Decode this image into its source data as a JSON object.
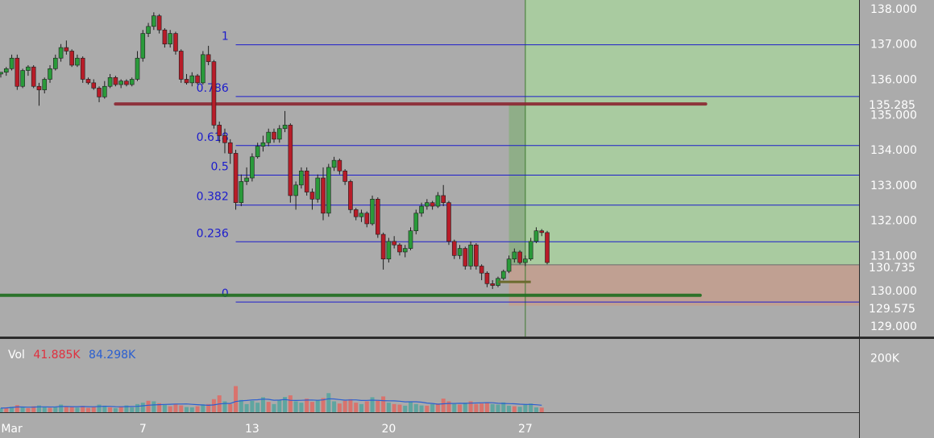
{
  "chart_data": {
    "type": "candlestick",
    "x_axis": {
      "ticks": [
        {
          "label": "Mar",
          "idx": 2
        },
        {
          "label": "7",
          "idx": 26
        },
        {
          "label": "13",
          "idx": 46
        },
        {
          "label": "20",
          "idx": 71
        },
        {
          "label": "27",
          "idx": 96
        }
      ]
    },
    "y_axis": {
      "range": [
        128.7,
        138.25
      ],
      "ticks": [
        {
          "label": "129.000",
          "v": 129
        },
        {
          "label": "130.000",
          "v": 130
        },
        {
          "label": "131.000",
          "v": 131
        },
        {
          "label": "132.000",
          "v": 132
        },
        {
          "label": "133.000",
          "v": 133
        },
        {
          "label": "134.000",
          "v": 134
        },
        {
          "label": "135.000",
          "v": 135
        },
        {
          "label": "136.000",
          "v": 136
        },
        {
          "label": "137.000",
          "v": 137
        },
        {
          "label": "138.000",
          "v": 138
        }
      ]
    },
    "volume_axis": {
      "tick_label": "200K",
      "tick_value": 200000,
      "max": 260000
    },
    "fibonacci": [
      {
        "label": "1",
        "v": 136.98
      },
      {
        "label": "0.786",
        "v": 135.51
      },
      {
        "label": "0.618",
        "v": 134.12
      },
      {
        "label": "0.5",
        "v": 133.28
      },
      {
        "label": "0.382",
        "v": 132.43
      },
      {
        "label": "0.236",
        "v": 131.39
      },
      {
        "label": "0",
        "v": 129.68
      }
    ],
    "horizontal_levels": [
      {
        "name": "resistance",
        "v": 135.3,
        "color": "#8b2530"
      },
      {
        "name": "support",
        "v": 129.87,
        "color": "#1e6e1e"
      }
    ],
    "position": {
      "entry": 130.735,
      "target": 135.285,
      "stop": 129.575
    },
    "price_labels": [
      {
        "text": "135.285",
        "v": 135.285,
        "color": "#27913a"
      },
      {
        "text": "130.735",
        "v": 130.735,
        "color": "#4a4a4a"
      },
      {
        "text": "129.575",
        "v": 129.575,
        "color": "#e0303f"
      }
    ],
    "volume_legend": {
      "title": "Vol",
      "value1": "41.885K",
      "value2": "84.298K"
    },
    "colors": {
      "up": "#2a9a3a",
      "down": "#b81c28",
      "vol_up": "#5fa5a0",
      "vol_down": "#d9736d",
      "fib": "#1c1ccc",
      "vol_ma": "#2b5fd0"
    },
    "candles": [
      [
        136.15,
        136.2,
        136.05,
        136.2
      ],
      [
        136.2,
        136.35,
        136.1,
        136.3
      ],
      [
        136.3,
        136.7,
        136.25,
        136.6
      ],
      [
        136.6,
        136.7,
        135.7,
        135.8
      ],
      [
        135.8,
        136.3,
        135.75,
        136.25
      ],
      [
        136.25,
        136.4,
        136.1,
        136.35
      ],
      [
        136.35,
        136.4,
        135.75,
        135.8
      ],
      [
        135.8,
        135.9,
        135.25,
        135.7
      ],
      [
        135.7,
        136.05,
        135.6,
        136.0
      ],
      [
        136.0,
        136.4,
        135.9,
        136.3
      ],
      [
        136.3,
        136.7,
        136.25,
        136.6
      ],
      [
        136.6,
        137.0,
        136.5,
        136.9
      ],
      [
        136.9,
        137.1,
        136.7,
        136.8
      ],
      [
        136.8,
        136.85,
        136.35,
        136.4
      ],
      [
        136.4,
        136.7,
        136.35,
        136.6
      ],
      [
        136.6,
        136.65,
        135.9,
        136.0
      ],
      [
        136.0,
        136.05,
        135.85,
        135.9
      ],
      [
        135.9,
        136.0,
        135.7,
        135.75
      ],
      [
        135.75,
        135.8,
        135.35,
        135.5
      ],
      [
        135.5,
        135.95,
        135.45,
        135.8
      ],
      [
        135.8,
        136.15,
        135.75,
        136.05
      ],
      [
        136.05,
        136.1,
        135.8,
        135.85
      ],
      [
        135.85,
        136.0,
        135.75,
        135.95
      ],
      [
        135.95,
        136.0,
        135.8,
        135.85
      ],
      [
        135.85,
        136.05,
        135.8,
        136.0
      ],
      [
        136.0,
        136.8,
        135.95,
        136.6
      ],
      [
        136.6,
        137.4,
        136.5,
        137.3
      ],
      [
        137.3,
        137.6,
        137.2,
        137.5
      ],
      [
        137.5,
        137.9,
        137.4,
        137.8
      ],
      [
        137.8,
        137.85,
        137.3,
        137.4
      ],
      [
        137.4,
        137.45,
        136.9,
        137.0
      ],
      [
        137.0,
        137.4,
        136.9,
        137.3
      ],
      [
        137.3,
        137.35,
        136.7,
        136.8
      ],
      [
        136.8,
        136.85,
        135.9,
        136.0
      ],
      [
        136.0,
        136.15,
        135.85,
        135.9
      ],
      [
        135.9,
        136.2,
        135.8,
        136.1
      ],
      [
        136.1,
        136.15,
        135.85,
        135.9
      ],
      [
        135.9,
        136.8,
        135.85,
        136.7
      ],
      [
        136.7,
        136.95,
        136.4,
        136.5
      ],
      [
        136.5,
        136.55,
        134.6,
        134.7
      ],
      [
        134.7,
        134.8,
        134.2,
        134.4
      ],
      [
        134.4,
        134.6,
        133.9,
        134.2
      ],
      [
        134.2,
        134.3,
        133.6,
        133.9
      ],
      [
        133.9,
        134.0,
        132.3,
        132.5
      ],
      [
        132.5,
        133.3,
        132.4,
        133.1
      ],
      [
        133.1,
        133.5,
        133.0,
        133.2
      ],
      [
        133.2,
        133.9,
        133.1,
        133.8
      ],
      [
        133.8,
        134.2,
        133.75,
        134.1
      ],
      [
        134.1,
        134.4,
        133.95,
        134.2
      ],
      [
        134.2,
        134.6,
        134.1,
        134.5
      ],
      [
        134.5,
        134.6,
        134.2,
        134.3
      ],
      [
        134.3,
        134.7,
        134.2,
        134.6
      ],
      [
        134.6,
        135.1,
        134.5,
        134.7
      ],
      [
        134.7,
        134.75,
        132.5,
        132.7
      ],
      [
        132.7,
        133.1,
        132.3,
        133.0
      ],
      [
        133.0,
        133.5,
        132.9,
        133.4
      ],
      [
        133.4,
        133.5,
        132.7,
        132.8
      ],
      [
        132.8,
        132.9,
        132.3,
        132.6
      ],
      [
        132.6,
        133.3,
        132.5,
        133.2
      ],
      [
        133.2,
        133.5,
        132.0,
        132.2
      ],
      [
        132.2,
        133.6,
        132.1,
        133.5
      ],
      [
        133.5,
        133.8,
        133.4,
        133.7
      ],
      [
        133.7,
        133.75,
        133.3,
        133.4
      ],
      [
        133.4,
        133.45,
        133.0,
        133.1
      ],
      [
        133.1,
        133.15,
        132.2,
        132.3
      ],
      [
        132.3,
        132.35,
        132.0,
        132.1
      ],
      [
        132.1,
        132.3,
        131.95,
        132.2
      ],
      [
        132.2,
        132.25,
        131.8,
        131.9
      ],
      [
        131.9,
        132.7,
        131.85,
        132.6
      ],
      [
        132.6,
        132.65,
        131.5,
        131.6
      ],
      [
        131.6,
        131.65,
        130.6,
        130.9
      ],
      [
        130.9,
        131.5,
        130.8,
        131.4
      ],
      [
        131.4,
        131.55,
        131.2,
        131.3
      ],
      [
        131.3,
        131.35,
        131.0,
        131.1
      ],
      [
        131.1,
        131.3,
        130.95,
        131.2
      ],
      [
        131.2,
        131.8,
        131.15,
        131.7
      ],
      [
        131.7,
        132.3,
        131.6,
        132.2
      ],
      [
        132.2,
        132.5,
        132.1,
        132.4
      ],
      [
        132.4,
        132.6,
        132.3,
        132.5
      ],
      [
        132.5,
        132.55,
        132.3,
        132.4
      ],
      [
        132.4,
        132.8,
        132.35,
        132.7
      ],
      [
        132.7,
        133.0,
        132.4,
        132.5
      ],
      [
        132.5,
        132.55,
        131.3,
        131.4
      ],
      [
        131.4,
        131.45,
        130.9,
        131.0
      ],
      [
        131.0,
        131.3,
        130.9,
        131.2
      ],
      [
        131.2,
        131.25,
        130.6,
        130.7
      ],
      [
        130.7,
        131.4,
        130.6,
        131.3
      ],
      [
        131.3,
        131.35,
        130.6,
        130.7
      ],
      [
        130.7,
        130.75,
        130.3,
        130.5
      ],
      [
        130.5,
        130.55,
        130.1,
        130.2
      ],
      [
        130.2,
        130.3,
        130.05,
        130.15
      ],
      [
        130.15,
        130.4,
        130.1,
        130.35
      ],
      [
        130.35,
        130.6,
        130.3,
        130.55
      ],
      [
        130.55,
        131.0,
        130.5,
        130.9
      ],
      [
        130.9,
        131.2,
        130.8,
        131.1
      ],
      [
        131.1,
        131.15,
        130.75,
        130.8
      ],
      [
        130.8,
        131.0,
        130.7,
        130.9
      ],
      [
        130.9,
        131.5,
        130.85,
        131.4
      ],
      [
        131.4,
        131.8,
        131.35,
        131.7
      ],
      [
        131.7,
        131.75,
        131.55,
        131.65
      ],
      [
        131.65,
        131.7,
        130.75,
        130.8
      ]
    ],
    "volumes": [
      [
        15000,
        1
      ],
      [
        17000,
        0
      ],
      [
        20000,
        1
      ],
      [
        26000,
        0
      ],
      [
        18000,
        1
      ],
      [
        15000,
        0
      ],
      [
        22000,
        0
      ],
      [
        25000,
        1
      ],
      [
        19000,
        1
      ],
      [
        16000,
        0
      ],
      [
        20000,
        1
      ],
      [
        28000,
        1
      ],
      [
        22000,
        0
      ],
      [
        19000,
        0
      ],
      [
        17000,
        1
      ],
      [
        23000,
        0
      ],
      [
        16000,
        0
      ],
      [
        21000,
        0
      ],
      [
        28000,
        1
      ],
      [
        24000,
        1
      ],
      [
        18000,
        0
      ],
      [
        15000,
        1
      ],
      [
        21000,
        0
      ],
      [
        25000,
        1
      ],
      [
        18000,
        1
      ],
      [
        30000,
        1
      ],
      [
        35000,
        1
      ],
      [
        42000,
        0
      ],
      [
        40000,
        1
      ],
      [
        33000,
        0
      ],
      [
        27000,
        1
      ],
      [
        22000,
        0
      ],
      [
        30000,
        0
      ],
      [
        25000,
        0
      ],
      [
        19000,
        1
      ],
      [
        18000,
        1
      ],
      [
        22000,
        0
      ],
      [
        29000,
        1
      ],
      [
        30000,
        0
      ],
      [
        48000,
        0
      ],
      [
        62000,
        0
      ],
      [
        40000,
        1
      ],
      [
        30000,
        0
      ],
      [
        96000,
        0
      ],
      [
        45000,
        1
      ],
      [
        30000,
        1
      ],
      [
        42000,
        1
      ],
      [
        35000,
        1
      ],
      [
        55000,
        1
      ],
      [
        38000,
        0
      ],
      [
        30000,
        1
      ],
      [
        44000,
        1
      ],
      [
        56000,
        1
      ],
      [
        62000,
        0
      ],
      [
        40000,
        1
      ],
      [
        35000,
        1
      ],
      [
        50000,
        0
      ],
      [
        38000,
        0
      ],
      [
        45000,
        1
      ],
      [
        52000,
        0
      ],
      [
        70000,
        1
      ],
      [
        40000,
        1
      ],
      [
        32000,
        0
      ],
      [
        42000,
        0
      ],
      [
        48000,
        0
      ],
      [
        35000,
        0
      ],
      [
        30000,
        1
      ],
      [
        40000,
        0
      ],
      [
        55000,
        1
      ],
      [
        45000,
        0
      ],
      [
        58000,
        0
      ],
      [
        35000,
        1
      ],
      [
        30000,
        0
      ],
      [
        28000,
        0
      ],
      [
        24000,
        1
      ],
      [
        38000,
        1
      ],
      [
        30000,
        1
      ],
      [
        25000,
        1
      ],
      [
        24000,
        0
      ],
      [
        30000,
        1
      ],
      [
        32000,
        0
      ],
      [
        50000,
        0
      ],
      [
        40000,
        0
      ],
      [
        30000,
        1
      ],
      [
        28000,
        0
      ],
      [
        35000,
        1
      ],
      [
        40000,
        0
      ],
      [
        30000,
        0
      ],
      [
        32000,
        0
      ],
      [
        34000,
        0
      ],
      [
        30000,
        1
      ],
      [
        28000,
        1
      ],
      [
        36000,
        1
      ],
      [
        24000,
        1
      ],
      [
        22000,
        0
      ],
      [
        20000,
        1
      ],
      [
        30000,
        1
      ],
      [
        32000,
        1
      ],
      [
        18000,
        1
      ],
      [
        17000,
        0
      ]
    ]
  }
}
